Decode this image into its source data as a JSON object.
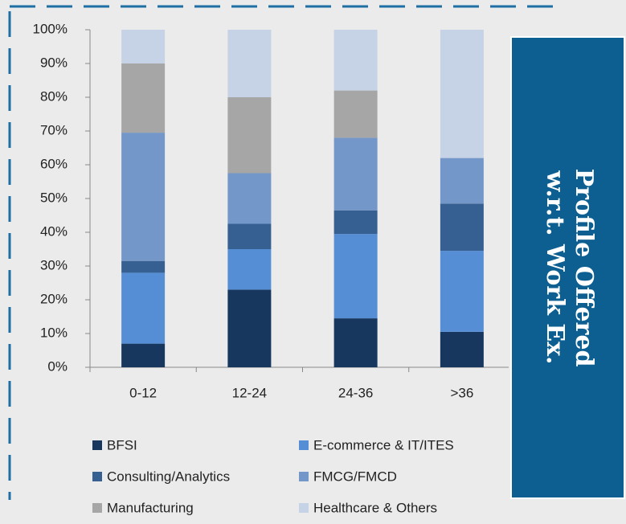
{
  "chart_data": {
    "type": "stacked_bar",
    "title_lines": [
      "Profile Offered",
      "w.r.t. Work Ex."
    ],
    "categories": [
      "0-12",
      "12-24",
      "24-36",
      ">36"
    ],
    "series": [
      {
        "name": "BFSI",
        "color": "#17375e",
        "values": [
          7,
          23,
          14.5,
          10.5
        ]
      },
      {
        "name": "E-commerce & IT/ITES",
        "color": "#558ed5",
        "values": [
          21,
          12,
          25,
          24
        ]
      },
      {
        "name": "Consulting/Analytics",
        "color": "#376092",
        "values": [
          3.5,
          7.5,
          7,
          14
        ]
      },
      {
        "name": "FMCG/FMCD",
        "color": "#7397c9",
        "values": [
          38,
          15,
          21.5,
          13.5
        ]
      },
      {
        "name": "Manufacturing",
        "color": "#a6a6a6",
        "values": [
          20.5,
          22.5,
          14,
          0
        ]
      },
      {
        "name": "Healthcare & Others",
        "color": "#c6d2e6",
        "values": [
          10,
          20,
          18,
          38
        ]
      }
    ],
    "ylim": [
      0,
      100
    ],
    "yticks": [
      {
        "value": 0,
        "label": "0%"
      },
      {
        "value": 10,
        "label": "10%"
      },
      {
        "value": 20,
        "label": "20%"
      },
      {
        "value": 30,
        "label": "30%"
      },
      {
        "value": 40,
        "label": "40%"
      },
      {
        "value": 50,
        "label": "50%"
      },
      {
        "value": 60,
        "label": "60%"
      },
      {
        "value": 70,
        "label": "70%"
      },
      {
        "value": 80,
        "label": "80%"
      },
      {
        "value": 90,
        "label": "90%"
      },
      {
        "value": 100,
        "label": "100%"
      }
    ],
    "grid": false
  }
}
